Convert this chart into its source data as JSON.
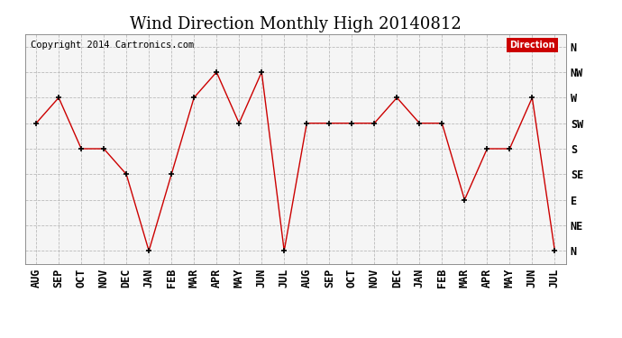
{
  "title": "Wind Direction Monthly High 20140812",
  "copyright": "Copyright 2014 Cartronics.com",
  "x_labels": [
    "AUG",
    "SEP",
    "OCT",
    "NOV",
    "DEC",
    "JAN",
    "FEB",
    "MAR",
    "APR",
    "MAY",
    "JUN",
    "JUL",
    "AUG",
    "SEP",
    "OCT",
    "NOV",
    "DEC",
    "JAN",
    "FEB",
    "MAR",
    "APR",
    "MAY",
    "JUN",
    "JUL"
  ],
  "y_labels": [
    "N",
    "NE",
    "E",
    "SE",
    "S",
    "SW",
    "W",
    "NW",
    "N"
  ],
  "y_values": [
    5,
    6,
    4,
    4,
    3,
    0,
    3,
    6,
    7,
    5,
    7,
    0,
    5,
    5,
    5,
    5,
    6,
    5,
    5,
    2,
    4,
    4,
    6,
    0
  ],
  "line_color": "#cc0000",
  "marker_color": "#000000",
  "grid_color": "#bbbbbb",
  "background_color": "#ffffff",
  "plot_bg_color": "#f5f5f5",
  "legend_bg": "#cc0000",
  "legend_text": "Direction",
  "title_fontsize": 13,
  "label_fontsize": 8.5,
  "copyright_fontsize": 7.5
}
